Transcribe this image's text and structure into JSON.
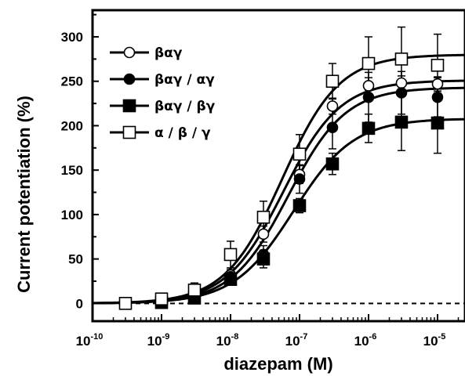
{
  "chart_data": {
    "type": "scatter",
    "xlabel": "diazepam (M)",
    "ylabel": "Current potentiation (%)",
    "x_scale": "log",
    "xlim": [
      1e-10,
      2.5e-05
    ],
    "ylim": [
      -20,
      330
    ],
    "x_ticks": [
      {
        "value": 1e-10,
        "base": "10",
        "exp": "-10"
      },
      {
        "value": 1e-09,
        "base": "10",
        "exp": "-9"
      },
      {
        "value": 1e-08,
        "base": "10",
        "exp": "-8"
      },
      {
        "value": 1e-07,
        "base": "10",
        "exp": "-7"
      },
      {
        "value": 1e-06,
        "base": "10",
        "exp": "-6"
      },
      {
        "value": 1e-05,
        "base": "10",
        "exp": "-5"
      }
    ],
    "y_ticks": [
      0,
      50,
      100,
      150,
      200,
      250,
      300
    ],
    "grid": false,
    "legend_position": "top-left",
    "reference_line": {
      "y": 0,
      "style": "dashed"
    },
    "series": [
      {
        "name": "βαγ",
        "marker": "open-circle",
        "x": [
          1e-09,
          3e-09,
          1e-08,
          3e-08,
          1e-07,
          3e-07,
          1e-06,
          3e-06,
          1e-05
        ],
        "y": [
          2,
          10,
          32,
          78,
          145,
          222,
          245,
          248,
          247
        ],
        "err": [
          4,
          5,
          6,
          9,
          10,
          9,
          9,
          8,
          8
        ],
        "fit": {
          "bottom": 0,
          "top": 251,
          "ec50": 5.8e-08,
          "hill": 1.05
        }
      },
      {
        "name": "βαγ / αγ",
        "marker": "filled-circle",
        "x": [
          1e-09,
          3e-09,
          1e-08,
          3e-08,
          1e-07,
          3e-07,
          1e-06,
          3e-06,
          1e-05
        ],
        "y": [
          2,
          8,
          30,
          55,
          140,
          198,
          232,
          237,
          232
        ],
        "err": [
          4,
          5,
          7,
          10,
          16,
          24,
          28,
          24,
          22
        ],
        "fit": {
          "bottom": 0,
          "top": 243,
          "ec50": 6.9e-08,
          "hill": 1.05
        }
      },
      {
        "name": "βαγ / βγ",
        "marker": "filled-square",
        "x": [
          1e-09,
          3e-09,
          1e-08,
          3e-08,
          1e-07,
          3e-07,
          1e-06,
          3e-06,
          1e-05
        ],
        "y": [
          1,
          6,
          27,
          50,
          110,
          157,
          197,
          204,
          203
        ],
        "err": [
          4,
          5,
          6,
          10,
          8,
          12,
          16,
          32,
          34
        ],
        "fit": {
          "bottom": 0,
          "top": 208,
          "ec50": 8.2e-08,
          "hill": 1.0
        }
      },
      {
        "name": "α / β / γ",
        "marker": "open-square",
        "x": [
          3e-10,
          1e-09,
          3e-09,
          1e-08,
          3e-08,
          1e-07,
          3e-07,
          1e-06,
          3e-06,
          1e-05
        ],
        "y": [
          0,
          5,
          15,
          55,
          97,
          168,
          250,
          270,
          275,
          268
        ],
        "err": [
          0,
          4,
          8,
          15,
          18,
          22,
          20,
          30,
          36,
          35
        ],
        "fit": {
          "bottom": 0,
          "top": 280,
          "ec50": 5.6e-08,
          "hill": 1.05
        }
      }
    ]
  }
}
